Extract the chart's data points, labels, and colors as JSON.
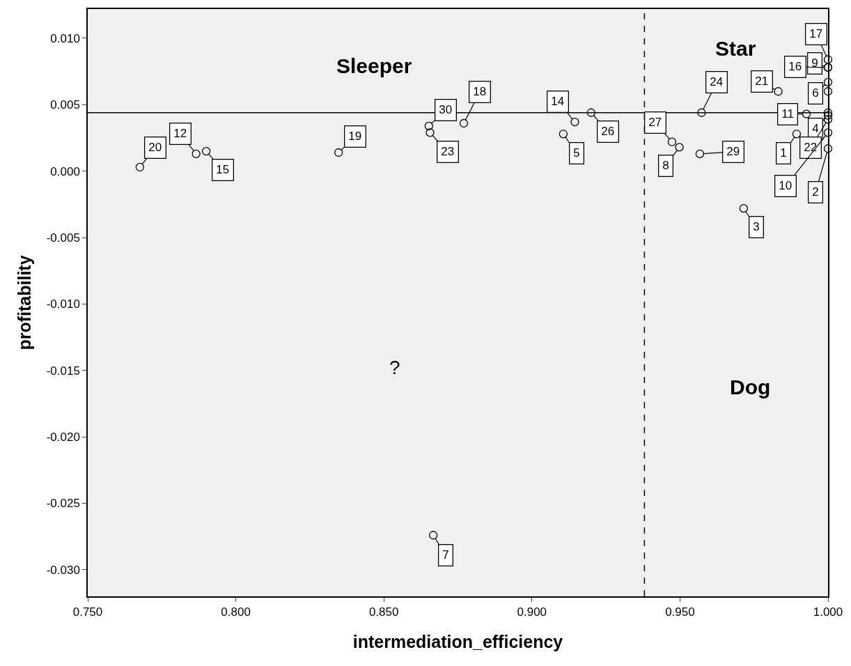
{
  "chart_data": {
    "type": "scatter",
    "xlabel": "intermediation_efficiency",
    "ylabel": "profitability",
    "x": [
      0.7676,
      0.7866,
      0.79,
      0.8347,
      0.8652,
      0.8656,
      0.877,
      0.8667,
      0.9145,
      0.9106,
      0.92,
      0.9573,
      0.9473,
      0.9498,
      0.9567,
      0.9832,
      0.9927,
      0.9894,
      0.9715,
      1.0,
      1.0,
      1.0,
      1.0,
      1.0,
      1.0,
      1.0,
      1.0,
      1.0,
      1.0
    ],
    "values": [
      0.0003,
      0.0013,
      0.0015,
      0.0014,
      0.0034,
      0.0029,
      0.0036,
      -0.0274,
      0.0037,
      0.0028,
      0.0044,
      0.0044,
      0.0022,
      0.0018,
      0.0013,
      0.006,
      0.0043,
      0.0028,
      -0.0028,
      0.0084,
      0.0078,
      0.0078,
      0.0067,
      0.006,
      0.0044,
      0.0042,
      0.0039,
      0.0029,
      0.0017
    ],
    "color": "#000000",
    "marker": "circle",
    "grid": false,
    "xlim": [
      0.75,
      1.0
    ],
    "xticks": [
      {
        "value": 0.75,
        "label": "0.750"
      },
      {
        "value": 0.8,
        "label": "0.800"
      },
      {
        "value": 0.85,
        "label": "0.850"
      },
      {
        "value": 0.9,
        "label": "0.900"
      },
      {
        "value": 0.95,
        "label": "0.950"
      },
      {
        "value": 1.0,
        "label": "1.000"
      }
    ],
    "ylim": [
      -0.032,
      0.0122
    ],
    "yticks": [
      {
        "value": 0.01,
        "label": "0.010"
      },
      {
        "value": 0.005,
        "label": "0.005"
      },
      {
        "value": 0,
        "label": "0.000"
      },
      {
        "value": -0.005,
        "label": "-0.005"
      },
      {
        "value": -0.01,
        "label": "-0.010"
      },
      {
        "value": -0.015,
        "label": "-0.015"
      },
      {
        "value": -0.02,
        "label": "-0.020"
      },
      {
        "value": -0.025,
        "label": "-0.025"
      },
      {
        "value": -0.03,
        "label": "-0.030"
      }
    ],
    "ref_lines": [
      {
        "axis": "y",
        "value": 0.0044,
        "color": "#000000",
        "line_style": "solid"
      },
      {
        "axis": "x",
        "value": 0.938,
        "color": "#000000",
        "line_style": "dashed"
      }
    ],
    "annotations": [
      "Sleeper",
      "Star",
      "Dog",
      "?",
      {
        "text": "20",
        "x": 0.7676,
        "y": 0.0003
      },
      {
        "text": "12",
        "x": 0.7866,
        "y": 0.0013
      },
      {
        "text": "15",
        "x": 0.79,
        "y": 0.0015
      },
      {
        "text": "19",
        "x": 0.8347,
        "y": 0.0014
      },
      {
        "text": "30",
        "x": 0.8652,
        "y": 0.0034
      },
      {
        "text": "23",
        "x": 0.8656,
        "y": 0.0029
      },
      {
        "text": "18",
        "x": 0.877,
        "y": 0.0036
      },
      {
        "text": "7",
        "x": 0.8667,
        "y": -0.0274
      },
      {
        "text": "14",
        "x": 0.9145,
        "y": 0.0037
      },
      {
        "text": "5",
        "x": 0.9106,
        "y": 0.0028
      },
      {
        "text": "26",
        "x": 0.92,
        "y": 0.0044
      },
      {
        "text": "24",
        "x": 0.9573,
        "y": 0.0044
      },
      {
        "text": "27",
        "x": 0.9473,
        "y": 0.0022
      },
      {
        "text": "8",
        "x": 0.9498,
        "y": 0.0018
      },
      {
        "text": "29",
        "x": 0.9567,
        "y": 0.0013
      },
      {
        "text": "21",
        "x": 0.9832,
        "y": 0.006
      },
      {
        "text": "11",
        "x": 0.9927,
        "y": 0.0043
      },
      {
        "text": "1",
        "x": 0.9894,
        "y": 0.0028
      },
      {
        "text": "3",
        "x": 0.9715,
        "y": -0.0028
      },
      {
        "text": "17",
        "x": 1.0,
        "y": 0.0084
      },
      {
        "text": "9",
        "x": 1.0,
        "y": 0.0078
      },
      {
        "text": "16",
        "x": 1.0,
        "y": 0.0078
      },
      {
        "text": "6",
        "x": 1.0,
        "y": 0.0067
      },
      {
        "text": "4",
        "x": 1.0,
        "y": 0.0042
      },
      {
        "text": "22",
        "x": 1.0,
        "y": 0.0039
      },
      {
        "text": "10",
        "x": 1.0,
        "y": 0.0029
      },
      {
        "text": "2",
        "x": 1.0,
        "y": 0.0017
      }
    ]
  }
}
